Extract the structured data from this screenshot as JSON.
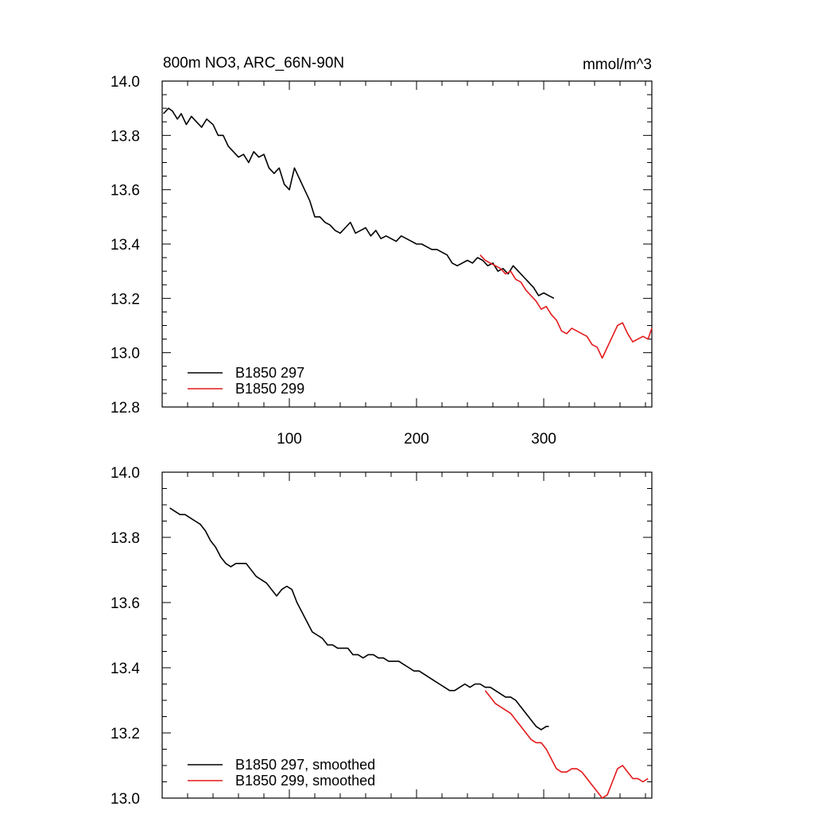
{
  "title_left": "800m NO3, ARC_66N-90N",
  "title_right": "mmol/m^3",
  "chart_data": [
    {
      "type": "line",
      "name": "raw",
      "title": "800m NO3, ARC_66N-90N",
      "units": "mmol/m^3",
      "xlim": [
        0,
        385
      ],
      "ylim": [
        12.8,
        14.0
      ],
      "xticks": [
        100,
        200,
        300
      ],
      "yticks": [
        12.8,
        13.0,
        13.2,
        13.4,
        13.6,
        13.8,
        14.0
      ],
      "ytick_labels": [
        "12.8",
        "13.0",
        "13.2",
        "13.4",
        "13.6",
        "13.8",
        "14.0"
      ],
      "xtick_labels": [
        "100",
        "200",
        "300"
      ],
      "legend_position": "bottom-left",
      "series": [
        {
          "name": "B1850 297",
          "color": "#000000",
          "x": [
            1,
            5,
            8,
            12,
            15,
            19,
            23,
            27,
            31,
            35,
            40,
            44,
            48,
            52,
            56,
            60,
            64,
            68,
            72,
            76,
            80,
            84,
            88,
            92,
            96,
            100,
            104,
            108,
            112,
            116,
            120,
            124,
            128,
            132,
            136,
            140,
            144,
            148,
            152,
            156,
            160,
            164,
            168,
            172,
            176,
            180,
            184,
            188,
            192,
            196,
            200,
            204,
            208,
            212,
            216,
            220,
            224,
            228,
            232,
            236,
            240,
            244,
            248,
            252,
            256,
            260,
            264,
            268,
            272,
            276,
            280,
            284,
            288,
            292,
            296,
            300,
            304,
            308
          ],
          "values": [
            13.88,
            13.9,
            13.89,
            13.86,
            13.88,
            13.84,
            13.87,
            13.85,
            13.83,
            13.86,
            13.84,
            13.8,
            13.8,
            13.76,
            13.74,
            13.72,
            13.73,
            13.7,
            13.74,
            13.72,
            13.73,
            13.68,
            13.66,
            13.68,
            13.62,
            13.6,
            13.68,
            13.64,
            13.6,
            13.56,
            13.5,
            13.5,
            13.48,
            13.47,
            13.45,
            13.44,
            13.46,
            13.48,
            13.44,
            13.45,
            13.46,
            13.43,
            13.45,
            13.42,
            13.43,
            13.42,
            13.41,
            13.43,
            13.42,
            13.41,
            13.4,
            13.4,
            13.39,
            13.38,
            13.38,
            13.37,
            13.36,
            13.33,
            13.32,
            13.33,
            13.34,
            13.33,
            13.35,
            13.34,
            13.32,
            13.33,
            13.3,
            13.31,
            13.29,
            13.32,
            13.3,
            13.28,
            13.26,
            13.24,
            13.21,
            13.22,
            13.21,
            13.2
          ]
        },
        {
          "name": "B1850 299",
          "color": "#e31a1c",
          "x": [
            250,
            254,
            258,
            262,
            266,
            270,
            274,
            278,
            282,
            286,
            290,
            294,
            298,
            302,
            306,
            310,
            314,
            318,
            322,
            326,
            330,
            334,
            338,
            342,
            346,
            350,
            354,
            358,
            362,
            366,
            370,
            374,
            378,
            382,
            385
          ],
          "values": [
            13.36,
            13.34,
            13.33,
            13.32,
            13.31,
            13.29,
            13.3,
            13.27,
            13.26,
            13.23,
            13.21,
            13.19,
            13.16,
            13.17,
            13.14,
            13.12,
            13.08,
            13.07,
            13.09,
            13.08,
            13.07,
            13.06,
            13.03,
            13.02,
            12.98,
            13.02,
            13.06,
            13.1,
            13.11,
            13.07,
            13.04,
            13.05,
            13.06,
            13.05,
            13.09
          ]
        }
      ]
    },
    {
      "type": "line",
      "name": "smoothed",
      "xlim": [
        0,
        385
      ],
      "ylim": [
        13.0,
        14.0
      ],
      "yticks": [
        13.0,
        13.2,
        13.4,
        13.6,
        13.8,
        14.0
      ],
      "ytick_labels": [
        "13.0",
        "13.2",
        "13.4",
        "13.6",
        "13.8",
        "14.0"
      ],
      "legend_position": "bottom-left",
      "series": [
        {
          "name": "B1850 297, smoothed",
          "color": "#000000",
          "x": [
            6,
            10,
            14,
            18,
            22,
            26,
            30,
            34,
            38,
            42,
            46,
            50,
            54,
            58,
            62,
            66,
            70,
            74,
            78,
            82,
            86,
            90,
            94,
            98,
            102,
            106,
            110,
            114,
            118,
            122,
            126,
            130,
            134,
            138,
            142,
            146,
            150,
            154,
            158,
            162,
            166,
            170,
            174,
            178,
            182,
            186,
            190,
            194,
            198,
            202,
            206,
            210,
            214,
            218,
            222,
            226,
            230,
            234,
            238,
            242,
            246,
            250,
            254,
            258,
            262,
            266,
            270,
            274,
            278,
            282,
            286,
            290,
            294,
            298,
            302,
            304
          ],
          "values": [
            13.89,
            13.88,
            13.87,
            13.87,
            13.86,
            13.85,
            13.84,
            13.82,
            13.79,
            13.77,
            13.74,
            13.72,
            13.71,
            13.72,
            13.72,
            13.72,
            13.7,
            13.68,
            13.67,
            13.66,
            13.64,
            13.62,
            13.64,
            13.65,
            13.64,
            13.6,
            13.57,
            13.54,
            13.51,
            13.5,
            13.49,
            13.47,
            13.47,
            13.46,
            13.46,
            13.46,
            13.44,
            13.44,
            13.43,
            13.44,
            13.44,
            13.43,
            13.43,
            13.42,
            13.42,
            13.42,
            13.41,
            13.4,
            13.39,
            13.39,
            13.38,
            13.37,
            13.36,
            13.35,
            13.34,
            13.33,
            13.33,
            13.34,
            13.35,
            13.34,
            13.35,
            13.35,
            13.34,
            13.34,
            13.33,
            13.32,
            13.31,
            13.31,
            13.3,
            13.28,
            13.26,
            13.24,
            13.22,
            13.21,
            13.22,
            13.22
          ]
        },
        {
          "name": "B1850 299, smoothed",
          "color": "#e31a1c",
          "x": [
            254,
            258,
            262,
            266,
            270,
            274,
            278,
            282,
            286,
            290,
            294,
            298,
            302,
            306,
            310,
            314,
            318,
            322,
            326,
            330,
            334,
            338,
            342,
            346,
            350,
            354,
            358,
            362,
            366,
            370,
            374,
            378,
            382
          ],
          "values": [
            13.33,
            13.31,
            13.29,
            13.28,
            13.27,
            13.26,
            13.24,
            13.22,
            13.2,
            13.18,
            13.17,
            13.17,
            13.15,
            13.12,
            13.09,
            13.08,
            13.08,
            13.09,
            13.09,
            13.08,
            13.06,
            13.04,
            13.02,
            13.0,
            13.01,
            13.05,
            13.09,
            13.1,
            13.08,
            13.06,
            13.06,
            13.05,
            13.06
          ]
        }
      ]
    }
  ]
}
